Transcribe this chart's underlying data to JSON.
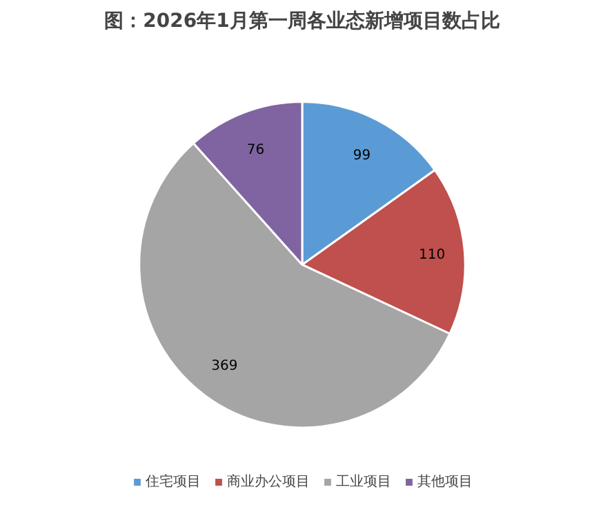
{
  "chart_data": {
    "type": "pie",
    "title": "图：2026年1月第一周各业态新增项目数占比",
    "categories": [
      "住宅项目",
      "商业办公项目",
      "工业项目",
      "其他项目"
    ],
    "values": [
      99,
      110,
      369,
      76
    ],
    "colors": [
      "#5b9bd5",
      "#c0504d",
      "#a5a5a5",
      "#8064a2"
    ],
    "data_labels": true,
    "legend": "bottom"
  }
}
